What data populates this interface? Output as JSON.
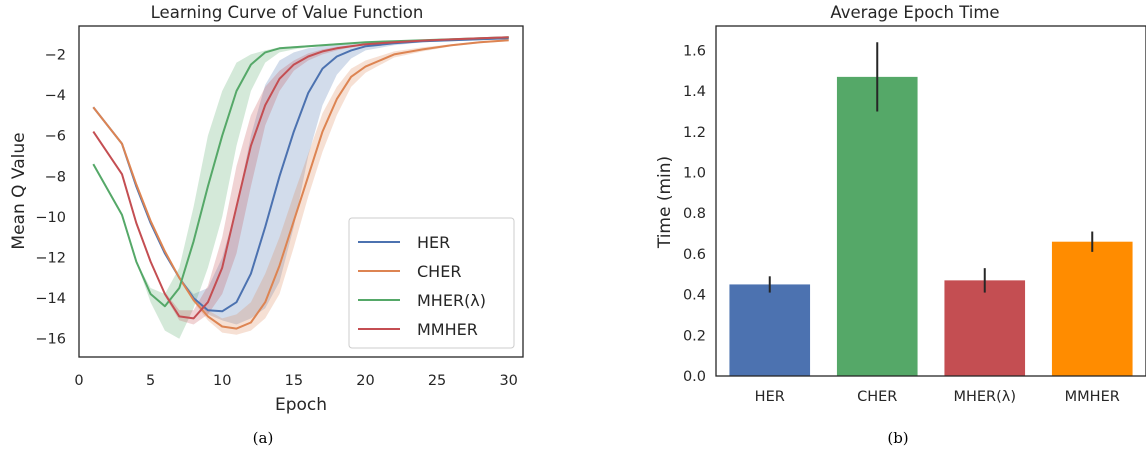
{
  "colors": {
    "HER": "#4c72b0",
    "CHER": "#dd8452",
    "MHER": "#55a868",
    "MMHER_line": "#c44e52",
    "MMHER_bar": "#ff8c00",
    "axis": "#262626"
  },
  "captions": {
    "a": "(a)",
    "b": "(b)"
  },
  "chart_data": [
    {
      "type": "line",
      "title": "Learning Curve of Value Function",
      "xlabel": "Epoch",
      "ylabel": "Mean Q Value",
      "xlim": [
        0,
        31
      ],
      "ylim": [
        -16.9,
        -0.6
      ],
      "xticks": [
        0,
        5,
        10,
        15,
        20,
        25,
        30
      ],
      "yticks": [
        -16,
        -14,
        -12,
        -10,
        -8,
        -6,
        -4,
        -2
      ],
      "grid": false,
      "legend_position": "lower-right",
      "x": [
        1,
        3,
        4,
        5,
        6,
        7,
        8,
        9,
        10,
        11,
        12,
        13,
        14,
        15,
        16,
        17,
        18,
        19,
        20,
        22,
        24,
        26,
        28,
        30
      ],
      "series": [
        {
          "name": "HER",
          "values": [
            -4.6,
            -6.4,
            -8.5,
            -10.3,
            -11.8,
            -13.0,
            -14.0,
            -14.6,
            -14.65,
            -14.2,
            -12.8,
            -10.5,
            -8.0,
            -5.8,
            -3.9,
            -2.7,
            -2.1,
            -1.8,
            -1.6,
            -1.45,
            -1.35,
            -1.3,
            -1.25,
            -1.2
          ],
          "band_lower": [
            -4.6,
            -6.4,
            -8.5,
            -10.3,
            -11.8,
            -13.0,
            -14.0,
            -14.8,
            -15.1,
            -15.3,
            -15.0,
            -14.5,
            -13.2,
            -10.5,
            -7.0,
            -4.5,
            -3.0,
            -2.2,
            -1.8,
            -1.55,
            -1.4,
            -1.35,
            -1.3,
            -1.25
          ],
          "band_upper": [
            -4.6,
            -6.4,
            -8.5,
            -10.3,
            -11.8,
            -13.0,
            -13.8,
            -13.5,
            -12.0,
            -9.5,
            -6.0,
            -3.5,
            -2.3,
            -1.9,
            -1.7,
            -1.6,
            -1.55,
            -1.5,
            -1.45,
            -1.4,
            -1.3,
            -1.28,
            -1.22,
            -1.15
          ]
        },
        {
          "name": "CHER",
          "values": [
            -4.6,
            -6.4,
            -8.4,
            -10.2,
            -11.7,
            -13.0,
            -14.1,
            -14.9,
            -15.4,
            -15.5,
            -15.2,
            -14.2,
            -12.4,
            -10.2,
            -8.0,
            -5.8,
            -4.2,
            -3.1,
            -2.6,
            -2.0,
            -1.75,
            -1.55,
            -1.4,
            -1.3
          ],
          "band_lower": [
            -4.6,
            -6.4,
            -8.4,
            -10.2,
            -11.7,
            -13.0,
            -14.2,
            -15.1,
            -15.7,
            -15.8,
            -15.6,
            -15.0,
            -13.8,
            -11.5,
            -9.0,
            -6.8,
            -5.0,
            -3.6,
            -2.9,
            -2.15,
            -1.85,
            -1.6,
            -1.45,
            -1.35
          ],
          "band_upper": [
            -4.6,
            -6.4,
            -8.4,
            -10.2,
            -11.7,
            -13.0,
            -14.0,
            -14.6,
            -15.0,
            -14.8,
            -14.2,
            -12.8,
            -11.0,
            -8.9,
            -6.9,
            -4.9,
            -3.6,
            -2.7,
            -2.3,
            -1.85,
            -1.65,
            -1.5,
            -1.35,
            -1.25
          ]
        },
        {
          "name": "MHER(λ)",
          "values": [
            -7.4,
            -9.9,
            -12.2,
            -13.8,
            -14.4,
            -13.5,
            -11.2,
            -8.5,
            -6.0,
            -3.8,
            -2.5,
            -1.9,
            -1.7,
            -1.65,
            -1.6,
            -1.55,
            -1.5,
            -1.45,
            -1.4,
            -1.35,
            -1.3,
            -1.25,
            -1.2,
            -1.15
          ],
          "band_lower": [
            -7.4,
            -9.9,
            -12.2,
            -14.2,
            -15.6,
            -16.0,
            -14.5,
            -12.5,
            -10.0,
            -6.5,
            -3.8,
            -2.4,
            -1.9,
            -1.75,
            -1.65,
            -1.6,
            -1.55,
            -1.5,
            -1.45,
            -1.38,
            -1.33,
            -1.28,
            -1.22,
            -1.18
          ],
          "band_upper": [
            -7.4,
            -9.9,
            -12.2,
            -13.5,
            -13.8,
            -12.5,
            -9.5,
            -6.0,
            -3.8,
            -2.4,
            -2.0,
            -1.8,
            -1.65,
            -1.6,
            -1.55,
            -1.5,
            -1.45,
            -1.42,
            -1.38,
            -1.33,
            -1.28,
            -1.24,
            -1.19,
            -1.13
          ]
        },
        {
          "name": "MMHER",
          "values": [
            -5.8,
            -7.9,
            -10.3,
            -12.2,
            -13.8,
            -14.9,
            -15.0,
            -14.2,
            -12.5,
            -9.5,
            -6.5,
            -4.5,
            -3.2,
            -2.5,
            -2.1,
            -1.85,
            -1.7,
            -1.6,
            -1.5,
            -1.4,
            -1.32,
            -1.26,
            -1.2,
            -1.15
          ],
          "band_lower": [
            -5.8,
            -7.9,
            -10.3,
            -12.2,
            -13.9,
            -15.1,
            -15.3,
            -14.8,
            -13.8,
            -11.8,
            -8.5,
            -5.5,
            -3.8,
            -2.8,
            -2.3,
            -2.0,
            -1.8,
            -1.65,
            -1.55,
            -1.45,
            -1.35,
            -1.28,
            -1.22,
            -1.17
          ],
          "band_upper": [
            -5.8,
            -7.9,
            -10.3,
            -12.2,
            -13.7,
            -14.6,
            -14.6,
            -13.4,
            -11.0,
            -7.5,
            -5.0,
            -3.6,
            -2.8,
            -2.3,
            -1.95,
            -1.75,
            -1.62,
            -1.55,
            -1.45,
            -1.35,
            -1.28,
            -1.23,
            -1.18,
            -1.12
          ]
        }
      ]
    },
    {
      "type": "bar",
      "title": "Average Epoch Time",
      "xlabel": "",
      "ylabel": "Time (min)",
      "ylim": [
        0,
        1.72
      ],
      "yticks": [
        "0.0",
        "0.2",
        "0.4",
        "0.6",
        "0.8",
        "1.0",
        "1.2",
        "1.4",
        "1.6"
      ],
      "grid": false,
      "categories": [
        "HER",
        "CHER",
        "MHER(λ)",
        "MMHER"
      ],
      "values": [
        0.45,
        1.47,
        0.47,
        0.66
      ],
      "error": [
        0.04,
        0.17,
        0.06,
        0.05
      ]
    }
  ]
}
